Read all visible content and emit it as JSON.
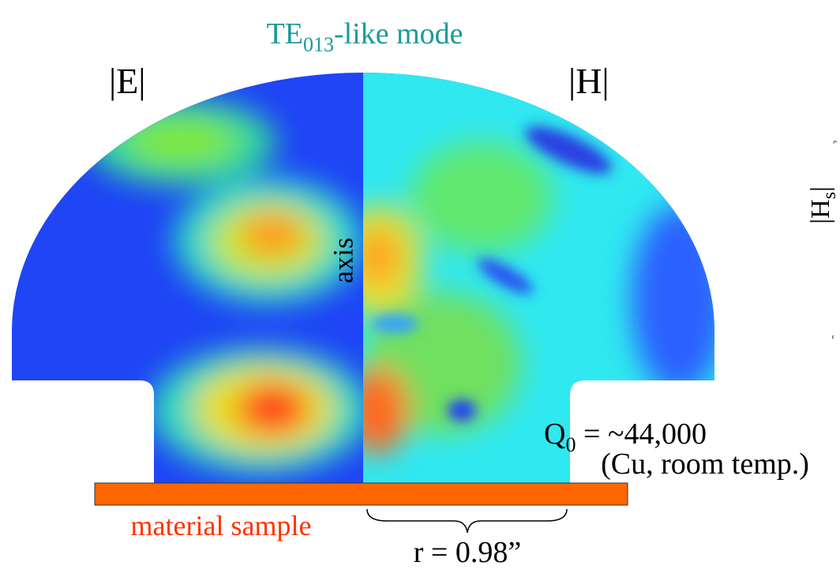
{
  "title": {
    "main": "TE",
    "sub": "013",
    "rest": "-like mode"
  },
  "left_label": "|E|",
  "right_label": "|H|",
  "axis_label": "axis",
  "quality": {
    "main": "Q",
    "sub": "0",
    "rest": " = ~44,000"
  },
  "conditions": "(Cu, room temp.)",
  "sample_label": "material sample",
  "radius_label": "r = 0.98”",
  "side_label": {
    "main": "|H",
    "sub": "s",
    "rest": "|"
  }
}
